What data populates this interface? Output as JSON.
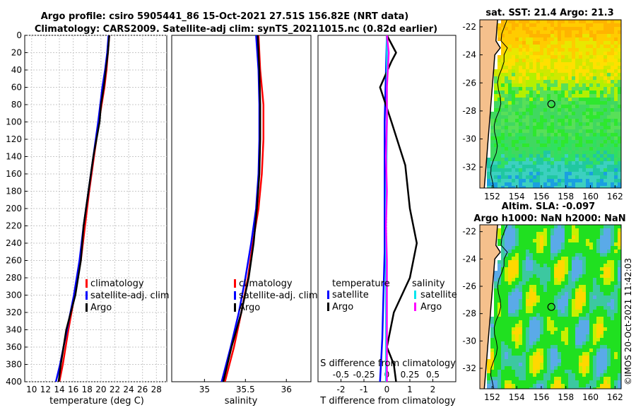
{
  "header": {
    "line1": "Argo profile: csiro 5905441_86 15-Oct-2021 27.51S 156.82E (NRT data)",
    "line2": "Climatology: CARS2009. Satellite-adj clim: synTS_20211015.nc (0.82d earlier)"
  },
  "colors": {
    "climatology": "#ff0000",
    "satellite": "#0000ff",
    "argo": "#000000",
    "sat_salinity": "#00e5ee",
    "argo_salinity": "#ff00ff",
    "land": "#f5c08c"
  },
  "chart_data": [
    {
      "id": "temperature",
      "type": "line",
      "xlabel": "temperature (deg C)",
      "ylabel": "",
      "xlim": [
        9,
        29.5
      ],
      "ylim": [
        400,
        0
      ],
      "xticks": [
        10,
        12,
        14,
        16,
        18,
        20,
        22,
        24,
        26,
        28
      ],
      "yticks": [
        0,
        20,
        40,
        60,
        80,
        100,
        120,
        140,
        160,
        180,
        200,
        220,
        240,
        260,
        280,
        300,
        320,
        340,
        360,
        380,
        400
      ],
      "grid": true,
      "legend_position": "lower-right",
      "series": [
        {
          "name": "climatology",
          "color": "#ff0000",
          "depth": [
            0,
            20,
            40,
            60,
            80,
            100,
            140,
            180,
            220,
            260,
            300,
            340,
            380,
            400
          ],
          "values": [
            21.2,
            21.0,
            20.8,
            20.5,
            20.1,
            19.7,
            19.0,
            18.3,
            17.7,
            17.1,
            16.2,
            15.3,
            14.5,
            14.0
          ]
        },
        {
          "name": "satellite-adj. clim",
          "color": "#0000ff",
          "depth": [
            0,
            20,
            40,
            60,
            80,
            100,
            140,
            180,
            220,
            260,
            300,
            340,
            380,
            400
          ],
          "values": [
            21.1,
            20.9,
            20.6,
            20.2,
            19.9,
            19.6,
            18.9,
            18.2,
            17.5,
            16.9,
            16.1,
            15.1,
            14.1,
            13.5
          ]
        },
        {
          "name": "Argo",
          "color": "#000000",
          "depth": [
            0,
            20,
            40,
            60,
            80,
            100,
            140,
            180,
            220,
            260,
            300,
            340,
            380,
            400
          ],
          "values": [
            21.2,
            21.0,
            20.7,
            20.4,
            20.0,
            19.8,
            18.9,
            18.2,
            17.5,
            17.1,
            16.3,
            15.0,
            14.2,
            13.9
          ]
        }
      ]
    },
    {
      "id": "salinity",
      "type": "line",
      "xlabel": "salinity",
      "xlim": [
        34.6,
        36.3
      ],
      "ylim": [
        400,
        0
      ],
      "xticks": [
        35,
        35.5,
        36
      ],
      "grid": false,
      "legend_position": "lower-right",
      "series": [
        {
          "name": "climatology",
          "color": "#ff0000",
          "depth": [
            0,
            40,
            80,
            120,
            160,
            200,
            240,
            280,
            320,
            360,
            400
          ],
          "values": [
            35.66,
            35.68,
            35.72,
            35.72,
            35.7,
            35.66,
            35.59,
            35.53,
            35.45,
            35.36,
            35.25
          ]
        },
        {
          "name": "satellite-adj. clim",
          "color": "#0000ff",
          "depth": [
            0,
            40,
            80,
            120,
            160,
            200,
            240,
            280,
            320,
            360,
            400
          ],
          "values": [
            35.63,
            35.66,
            35.67,
            35.67,
            35.66,
            35.63,
            35.57,
            35.5,
            35.42,
            35.32,
            35.21
          ]
        },
        {
          "name": "Argo",
          "color": "#000000",
          "depth": [
            0,
            40,
            80,
            120,
            160,
            200,
            240,
            280,
            320,
            360,
            400
          ],
          "values": [
            35.65,
            35.67,
            35.68,
            35.68,
            35.67,
            35.64,
            35.6,
            35.54,
            35.45,
            35.33,
            35.23
          ]
        }
      ]
    },
    {
      "id": "difference",
      "type": "line",
      "xlabel": "T difference from climatology",
      "xlabel_top": "S difference from climatology",
      "xlim": [
        -3,
        3
      ],
      "ylim": [
        400,
        0
      ],
      "xticks": [
        -2,
        -1,
        0,
        1,
        2
      ],
      "xticks_top": [
        "-0.5",
        "-0.25",
        "0",
        "0.25",
        "0.5"
      ],
      "legend": {
        "temperature_title": "temperature",
        "salinity_title": "salinity",
        "items": [
          {
            "name": "satellite",
            "color": "#0000ff"
          },
          {
            "name": "Argo",
            "color": "#000000"
          },
          {
            "name": "satellite",
            "color": "#00e5ee"
          },
          {
            "name": "Argo",
            "color": "#ff00ff"
          }
        ]
      },
      "series": [
        {
          "name": "T satellite",
          "color": "#0000ff",
          "depth": [
            0,
            50,
            100,
            150,
            200,
            250,
            300,
            350,
            400
          ],
          "values": [
            0.0,
            -0.05,
            -0.1,
            -0.1,
            -0.1,
            -0.1,
            -0.15,
            -0.2,
            -0.3
          ]
        },
        {
          "name": "T Argo",
          "color": "#000000",
          "depth": [
            0,
            20,
            30,
            60,
            100,
            150,
            200,
            240,
            280,
            320,
            360,
            380,
            400
          ],
          "values": [
            0.0,
            0.4,
            0.2,
            -0.3,
            0.2,
            0.8,
            1.0,
            1.3,
            1.0,
            0.3,
            0.0,
            0.3,
            0.4
          ]
        },
        {
          "name": "S satellite",
          "color": "#00e5ee",
          "depth": [
            0,
            100,
            200,
            300,
            400
          ],
          "values": [
            0.0,
            0.0,
            -0.01,
            -0.01,
            -0.01
          ]
        },
        {
          "name": "S Argo",
          "color": "#ff00ff",
          "depth": [
            0,
            20,
            60,
            100,
            140,
            180,
            220,
            260,
            300,
            340,
            380,
            400
          ],
          "values": [
            0.0,
            0.02,
            0.0,
            0.0,
            -0.01,
            0.0,
            -0.01,
            0.0,
            0.0,
            0.0,
            0.0,
            0.0
          ]
        }
      ]
    },
    {
      "id": "sst-map",
      "type": "heatmap",
      "title": "sat. SST: 21.4 Argo: 21.3",
      "xticks": [
        152,
        154,
        156,
        158,
        160,
        162
      ],
      "yticks": [
        -22,
        -24,
        -26,
        -28,
        -30,
        -32
      ],
      "xlim": [
        151,
        162.5
      ],
      "ylim": [
        -33.5,
        -21.5
      ],
      "marker": [
        156.82,
        -27.51
      ]
    },
    {
      "id": "sla-map",
      "type": "heatmap",
      "title1": "Altim. SLA: -0.097",
      "title2": "Argo h1000: NaN h2000: NaN",
      "xticks": [
        152,
        154,
        156,
        158,
        160,
        162
      ],
      "yticks": [
        -22,
        -24,
        -26,
        -28,
        -30,
        -32
      ],
      "xlim": [
        151,
        162.5
      ],
      "ylim": [
        -33.5,
        -21.5
      ],
      "marker": [
        156.82,
        -27.51
      ]
    }
  ],
  "side_label": "©IMOS 20-Oct-2021 11:42:03"
}
